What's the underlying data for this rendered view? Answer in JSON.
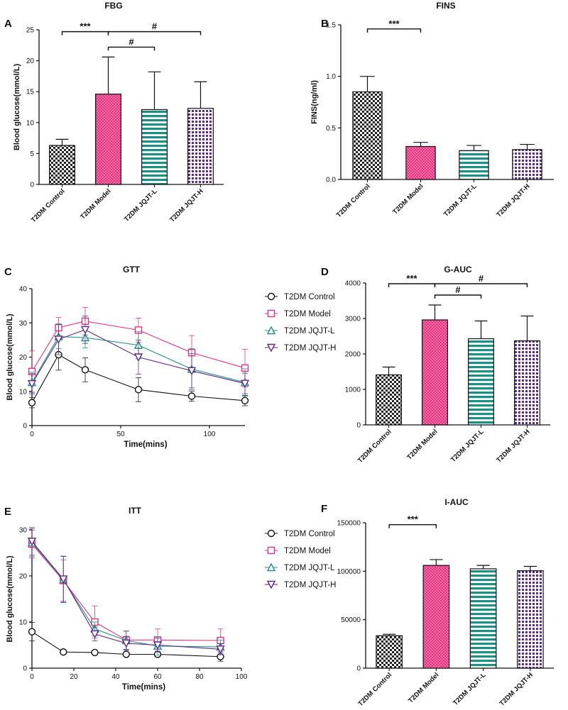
{
  "styles": {
    "T2DM Control": {
      "color": "#111111",
      "marker": "circle",
      "pattern": "checker"
    },
    "T2DM Model": {
      "color": "#e8307f",
      "marker": "square",
      "pattern": "pinkdots"
    },
    "T2DM JQJT-L": {
      "color": "#1e8f84",
      "marker": "triangle",
      "pattern": "hstripes"
    },
    "T2DM JQJT-H": {
      "color": "#5b2a8a",
      "marker": "tri-down",
      "pattern": "purplegrid"
    }
  },
  "chart_data": [
    {
      "id": "A",
      "letter": "A",
      "type": "bar",
      "title": "FBG",
      "ylabel": "Blood glucose(mmol/L)",
      "ylim": [
        0,
        25
      ],
      "yticks": [
        0,
        5,
        10,
        15,
        20,
        25
      ],
      "categories": [
        "T2DM Control",
        "T2DM Model",
        "T2DM JQJT-L",
        "T2DM JQJT-H"
      ],
      "values": [
        6.3,
        14.6,
        12.1,
        12.3
      ],
      "errors": [
        1.0,
        6.0,
        6.1,
        4.3
      ],
      "annotations": [
        {
          "from": 0,
          "to": 1,
          "y": 24.7,
          "label": "***"
        },
        {
          "from": 1,
          "to": 3,
          "y": 24.7,
          "label": "#"
        },
        {
          "from": 1,
          "to": 2,
          "y": 22.2,
          "label": "#"
        }
      ]
    },
    {
      "id": "B",
      "letter": "B",
      "type": "bar",
      "title": "FINS",
      "ylabel": "FINS(ng/ml)",
      "ylim": [
        0,
        1.5
      ],
      "yticks": [
        0.0,
        0.5,
        1.0,
        1.5
      ],
      "tickDecimals": 1,
      "categories": [
        "T2DM Control",
        "T2DM Model",
        "T2DM JQJT-L",
        "T2DM JQJT-H"
      ],
      "values": [
        0.85,
        0.32,
        0.28,
        0.29
      ],
      "errors": [
        0.15,
        0.04,
        0.05,
        0.05
      ],
      "annotations": [
        {
          "from": 0,
          "to": 1,
          "y": 1.46,
          "label": "***"
        }
      ]
    },
    {
      "id": "C",
      "letter": "C",
      "type": "line",
      "title": "GTT",
      "ylabel": "Blood glucose(mmol/L)",
      "xlabel": "Time(mins)",
      "xlim": [
        0,
        120
      ],
      "ylim": [
        0,
        40
      ],
      "xticks": [
        0,
        50,
        100
      ],
      "yticks": [
        0,
        10,
        20,
        30,
        40
      ],
      "x": [
        0,
        15,
        30,
        60,
        90,
        120
      ],
      "series": [
        {
          "name": "T2DM Control",
          "values": [
            6.7,
            20.7,
            16.3,
            10.5,
            8.6,
            7.3
          ],
          "errors": [
            1.5,
            4.5,
            3.5,
            3.5,
            1.5,
            1.5
          ]
        },
        {
          "name": "T2DM Model",
          "values": [
            15.8,
            28.6,
            30.5,
            27.9,
            21.3,
            16.8
          ],
          "errors": [
            6.0,
            3.0,
            4.0,
            3.5,
            5.0,
            5.5
          ]
        },
        {
          "name": "T2DM JQJT-L",
          "values": [
            12.6,
            26.0,
            25.7,
            23.5,
            16.5,
            12.6
          ],
          "errors": [
            3.0,
            3.5,
            3.0,
            4.0,
            6.0,
            4.0
          ]
        },
        {
          "name": "T2DM JQJT-H",
          "values": [
            12.2,
            25.2,
            28.0,
            20.0,
            16.0,
            12.3
          ],
          "errors": [
            3.0,
            4.5,
            4.0,
            5.0,
            5.0,
            3.0
          ]
        }
      ]
    },
    {
      "id": "D",
      "letter": "D",
      "type": "bar",
      "title": "G-AUC",
      "ylabel": "",
      "ylim": [
        0,
        4000
      ],
      "yticks": [
        0,
        1000,
        2000,
        3000,
        4000
      ],
      "categories": [
        "T2DM Control",
        "T2DM Model",
        "T2DM JQJT-L",
        "T2DM JQJT-H"
      ],
      "values": [
        1410,
        2960,
        2430,
        2370
      ],
      "errors": [
        220,
        420,
        500,
        700
      ],
      "annotations": [
        {
          "from": 0,
          "to": 1,
          "y": 3980,
          "label": "***"
        },
        {
          "from": 1,
          "to": 3,
          "y": 3980,
          "label": "#"
        },
        {
          "from": 1,
          "to": 2,
          "y": 3660,
          "label": "#"
        }
      ]
    },
    {
      "id": "E",
      "letter": "E",
      "type": "line",
      "title": "ITT",
      "ylabel": "Blood glucose(mmol/L)",
      "xlabel": "Time(mins)",
      "xlim": [
        0,
        100
      ],
      "ylim": [
        0,
        30
      ],
      "xticks": [
        0,
        20,
        40,
        60,
        80,
        100
      ],
      "yticks": [
        0,
        10,
        20,
        30
      ],
      "x": [
        0,
        15,
        30,
        45,
        60,
        90
      ],
      "series": [
        {
          "name": "T2DM Control",
          "values": [
            7.9,
            3.5,
            3.4,
            3.0,
            3.0,
            2.5
          ],
          "errors": [
            2.0,
            0.5,
            0.4,
            0.4,
            0.5,
            1.0
          ]
        },
        {
          "name": "T2DM Model",
          "values": [
            26.9,
            19.0,
            10.0,
            6.1,
            6.1,
            6.0
          ],
          "errors": [
            3.0,
            4.5,
            3.5,
            2.0,
            2.4,
            2.5
          ]
        },
        {
          "name": "T2DM JQJT-L",
          "values": [
            27.2,
            19.2,
            8.5,
            6.0,
            4.8,
            4.6
          ],
          "errors": [
            3.0,
            5.0,
            1.5,
            2.0,
            2.0,
            1.5
          ]
        },
        {
          "name": "T2DM JQJT-H",
          "values": [
            27.5,
            19.3,
            7.4,
            5.4,
            5.0,
            4.1
          ],
          "errors": [
            3.0,
            5.0,
            1.5,
            1.5,
            1.5,
            1.2
          ]
        }
      ]
    },
    {
      "id": "F",
      "letter": "F",
      "type": "bar",
      "title": "I-AUC",
      "ylabel": "",
      "ylim": [
        0,
        150000
      ],
      "yticks": [
        0,
        50000,
        100000,
        150000
      ],
      "categories": [
        "T2DM Control",
        "T2DM Model",
        "T2DM JQJT-L",
        "T2DM JQJT-H"
      ],
      "values": [
        33500,
        106000,
        102500,
        100500
      ],
      "errors": [
        1500,
        6000,
        3500,
        4500
      ],
      "annotations": [
        {
          "from": 0,
          "to": 1,
          "y": 148000,
          "label": "***"
        }
      ]
    }
  ]
}
